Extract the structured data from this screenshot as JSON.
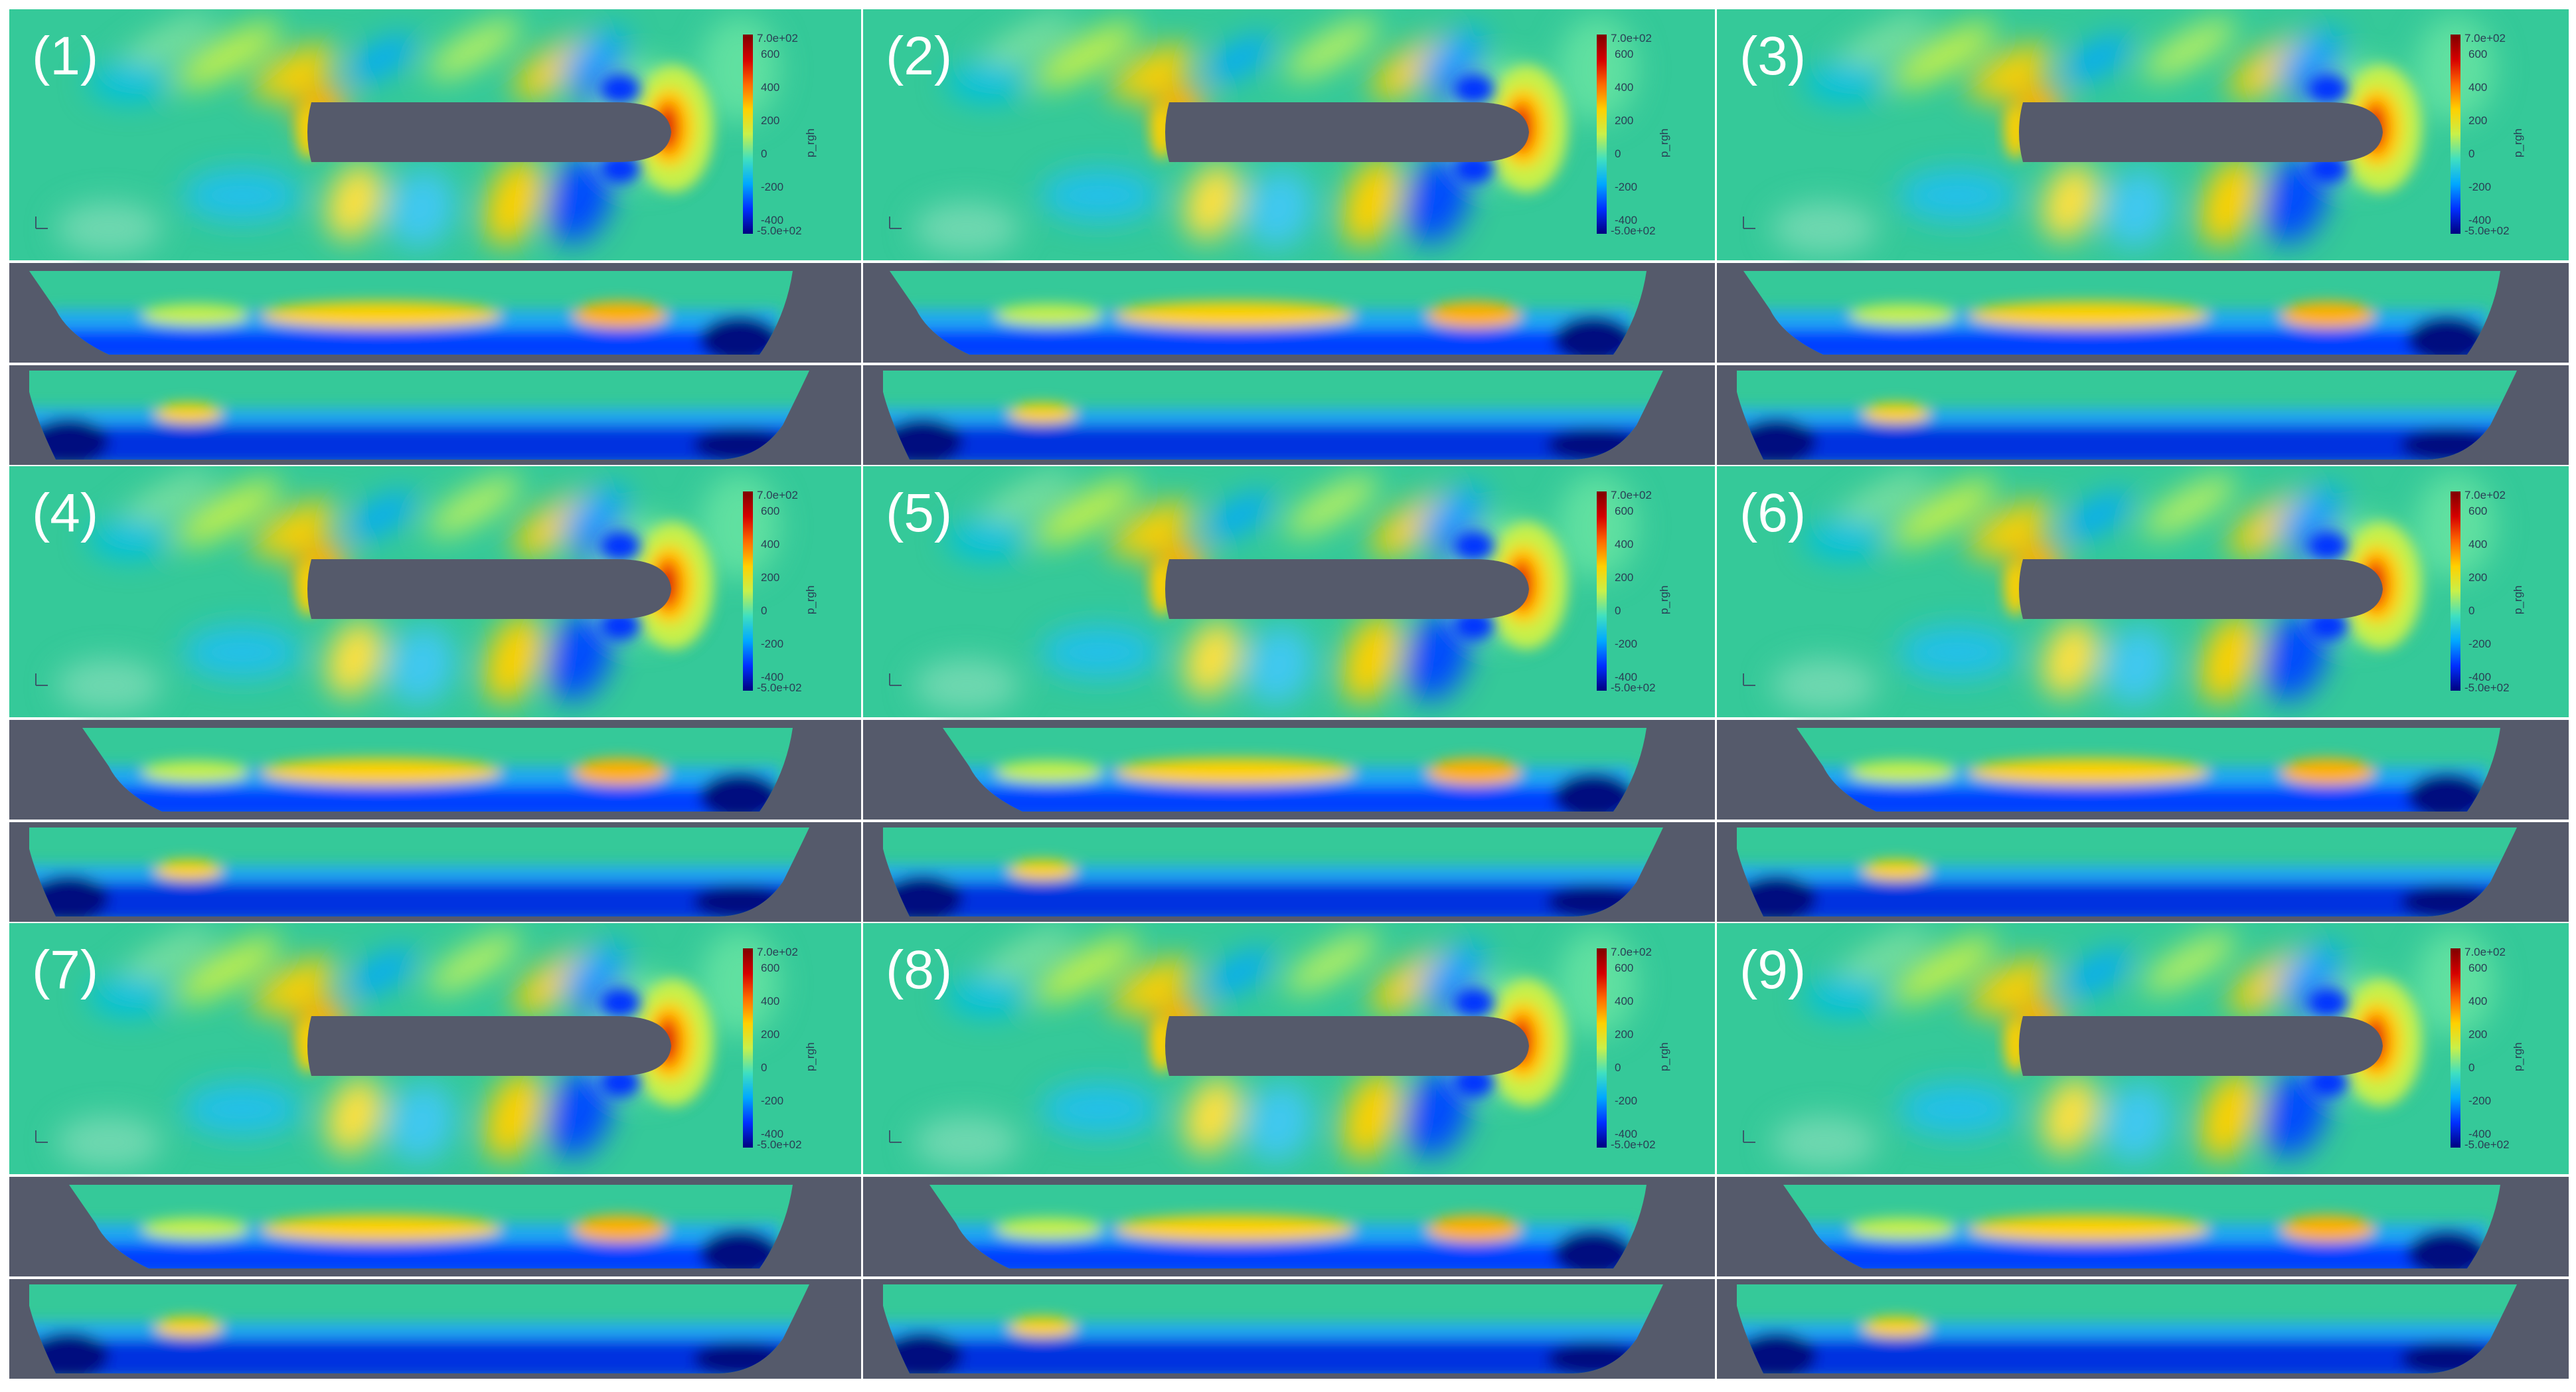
{
  "colorbar": {
    "max_label": "7.0e+02",
    "min_label": "-5.0e+02",
    "ticks": [
      "600",
      "400",
      "200",
      "0",
      "-200",
      "-400"
    ],
    "title": "p_rgh",
    "colors": [
      "#00007f",
      "#0030ff",
      "#00a8ff",
      "#3fe0c0",
      "#c8f04a",
      "#ffd000",
      "#ff6a00",
      "#d40000",
      "#7f0000"
    ]
  },
  "colors": {
    "background_field": "#35c999",
    "hull_plan": "#555a6b",
    "side_view_bg": "#555a6b",
    "divider": "#ffffff"
  },
  "panels": [
    {
      "label": "(1)"
    },
    {
      "label": "(2)"
    },
    {
      "label": "(3)"
    },
    {
      "label": "(4)"
    },
    {
      "label": "(5)"
    },
    {
      "label": "(6)"
    },
    {
      "label": "(7)"
    },
    {
      "label": "(8)"
    },
    {
      "label": "(9)"
    }
  ]
}
